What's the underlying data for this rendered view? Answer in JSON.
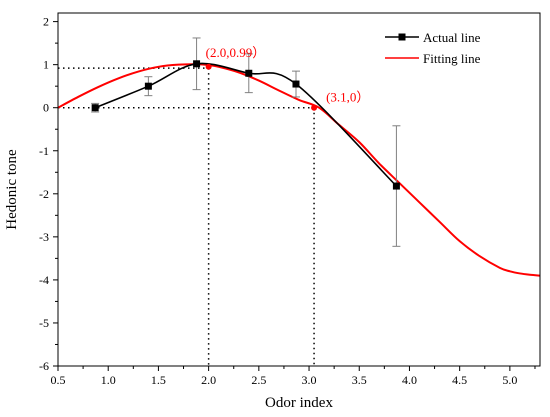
{
  "chart_data": {
    "type": "line",
    "xlabel": "Odor index",
    "ylabel": "Hedonic tone",
    "xlim": [
      0.5,
      5.3
    ],
    "ylim": [
      -6,
      2.2
    ],
    "x_ticks": [
      "0.5",
      "1.0",
      "1.5",
      "2.0",
      "2.5",
      "3.0",
      "3.5",
      "4.0",
      "4.5",
      "5.0"
    ],
    "y_ticks": [
      "2",
      "1",
      "0",
      "-1",
      "-2",
      "-3",
      "-4",
      "-5",
      "-6"
    ],
    "x_tick_values": [
      0.5,
      1.0,
      1.5,
      2.0,
      2.5,
      3.0,
      3.5,
      4.0,
      4.5,
      5.0
    ],
    "y_tick_values": [
      2,
      1,
      0,
      -1,
      -2,
      -3,
      -4,
      -5,
      -6
    ],
    "legend_position": "top-right",
    "series": [
      {
        "name": "Actual line",
        "color": "#000000",
        "marker": "square",
        "x": [
          0.87,
          1.4,
          1.88,
          2.4,
          2.87,
          3.87
        ],
        "y": [
          0.0,
          0.5,
          1.02,
          0.8,
          0.55,
          -1.82
        ],
        "error": [
          0.1,
          0.22,
          0.6,
          0.45,
          0.3,
          1.4
        ]
      },
      {
        "name": "Fitting line",
        "color": "#ff0000",
        "x": [
          0.5,
          0.7,
          0.9,
          1.1,
          1.3,
          1.5,
          1.7,
          1.9,
          2.0,
          2.1,
          2.3,
          2.5,
          2.7,
          2.9,
          3.1,
          3.3,
          3.5,
          3.7,
          3.9,
          4.1,
          4.3,
          4.5,
          4.7,
          4.9,
          5.0,
          5.1,
          5.2,
          5.3
        ],
        "y": [
          0.0,
          0.25,
          0.48,
          0.68,
          0.84,
          0.95,
          1.0,
          1.01,
          0.99,
          0.95,
          0.82,
          0.63,
          0.4,
          0.18,
          0.0,
          -0.4,
          -0.8,
          -1.3,
          -1.75,
          -2.2,
          -2.65,
          -3.1,
          -3.45,
          -3.72,
          -3.8,
          -3.85,
          -3.88,
          -3.9
        ]
      }
    ],
    "annotations": [
      {
        "text": "(2.0,0.99）",
        "x": 2.0,
        "y": 0.95,
        "color": "#ff0000"
      },
      {
        "text": "(3.1,0）",
        "x": 3.05,
        "y": 0.0,
        "color": "#ff0000"
      }
    ],
    "reference_lines": [
      {
        "type": "horizontal",
        "y": 0.92,
        "x_from": 0.5,
        "x_to": 2.0
      },
      {
        "type": "vertical",
        "x": 2.0,
        "y_from": 0.92,
        "y_to": -6
      },
      {
        "type": "horizontal",
        "y": 0.0,
        "x_from": 0.5,
        "x_to": 3.05
      },
      {
        "type": "vertical",
        "x": 3.05,
        "y_from": 0.0,
        "y_to": -6
      }
    ]
  }
}
